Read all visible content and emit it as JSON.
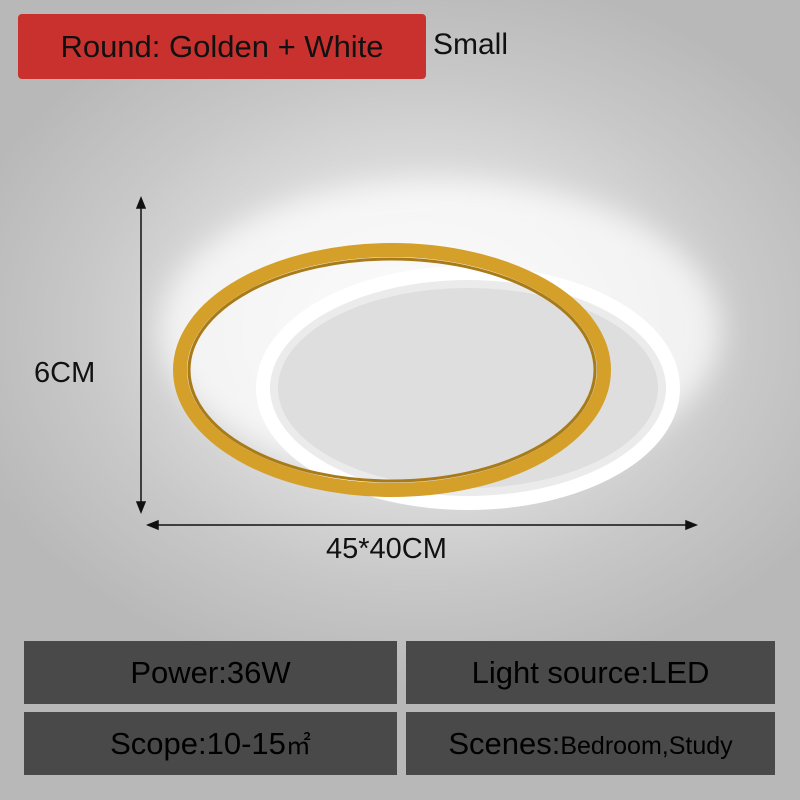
{
  "variant": {
    "label": "Round: Golden + White",
    "size": "Small"
  },
  "dimensions": {
    "height": "6CM",
    "width": "45*40CM"
  },
  "specs": {
    "power": "Power:36W",
    "light_source": "Light source:LED",
    "scope": "Scope:10-15",
    "scope_unit": "㎡",
    "scenes_label": "Scenes:",
    "scenes_value": "Bedroom,Study"
  },
  "colors": {
    "badge": "#c8312e",
    "gold": "#d4a02a",
    "spec_box": "#4a494a"
  }
}
